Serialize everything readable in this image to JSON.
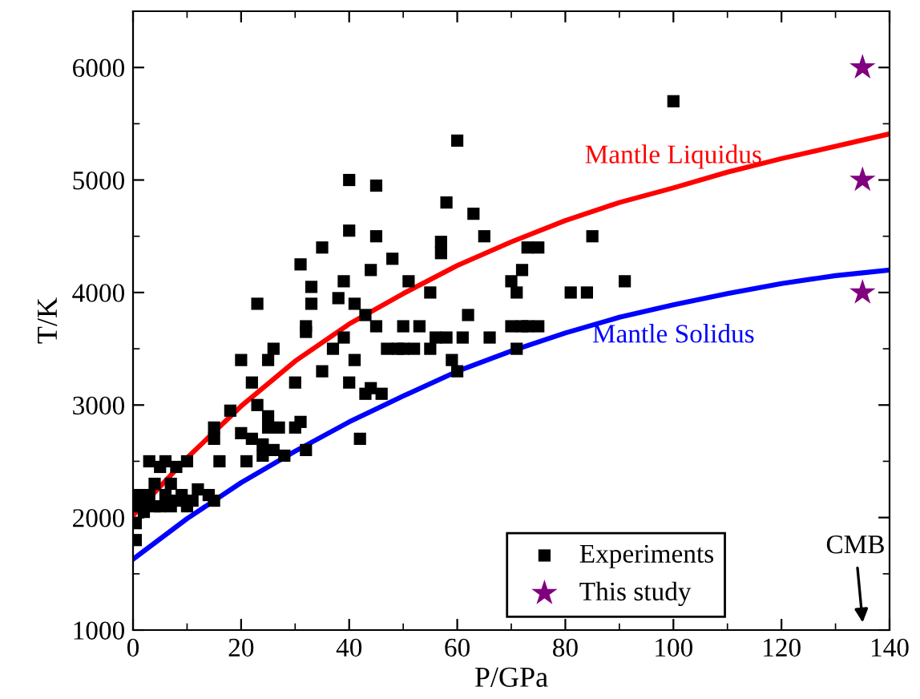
{
  "chart_data": {
    "type": "scatter",
    "xlabel": "P/GPa",
    "ylabel": "T/K",
    "xlim": [
      0,
      140
    ],
    "xticks": [
      0,
      20,
      40,
      60,
      80,
      100,
      120,
      140
    ],
    "ylim": [
      1000,
      6500
    ],
    "yticks": [
      1000,
      2000,
      3000,
      4000,
      5000,
      6000
    ],
    "legend": "bottom right",
    "grid": false,
    "annotations": [
      "CMB"
    ],
    "series": [
      {
        "name": "Mantle Liquidus",
        "type": "line",
        "color": "#ff0000",
        "x": [
          0,
          10,
          20,
          30,
          40,
          50,
          60,
          70,
          80,
          90,
          100,
          110,
          120,
          130,
          140
        ],
        "values": [
          2020,
          2530,
          2990,
          3390,
          3720,
          3990,
          4240,
          4450,
          4640,
          4800,
          4930,
          5070,
          5190,
          5300,
          5410
        ]
      },
      {
        "name": "Mantle Solidus",
        "type": "line",
        "color": "#0000ff",
        "x": [
          0,
          10,
          20,
          30,
          40,
          50,
          60,
          70,
          80,
          90,
          100,
          110,
          120,
          130,
          140
        ],
        "values": [
          1630,
          1990,
          2310,
          2590,
          2850,
          3080,
          3300,
          3480,
          3640,
          3780,
          3890,
          3990,
          4080,
          4150,
          4200
        ]
      },
      {
        "name": "Experiments",
        "marker": "square",
        "color": "#000000",
        "x": [
          0.5,
          0.5,
          1,
          1,
          2,
          2,
          3,
          3,
          4,
          4,
          5,
          5,
          6,
          6,
          7,
          7,
          8,
          8,
          9,
          10,
          10,
          11,
          12,
          14,
          15,
          15,
          15,
          16,
          18,
          20,
          20,
          21,
          22,
          23,
          22,
          23,
          24,
          24,
          25,
          25,
          25,
          26,
          26,
          27,
          28,
          30,
          30,
          31,
          31,
          32,
          32,
          32,
          33,
          33,
          35,
          35,
          37,
          38,
          39,
          39,
          40,
          40,
          40,
          41,
          41,
          42,
          43,
          43,
          44,
          44,
          45,
          45,
          45,
          46,
          47,
          48,
          49,
          50,
          50,
          51,
          52,
          53,
          55,
          55,
          56,
          57,
          57,
          58,
          58,
          59,
          60,
          60,
          61,
          62,
          63,
          65,
          66,
          70,
          71,
          71,
          72,
          73,
          73,
          75,
          75,
          81,
          84,
          85,
          91,
          100,
          70,
          72
        ],
        "values": [
          1800,
          1950,
          2100,
          2200,
          2050,
          2150,
          2500,
          2200,
          2100,
          2300,
          2450,
          2100,
          2200,
          2500,
          2100,
          2300,
          2450,
          2150,
          2200,
          2100,
          2500,
          2150,
          2250,
          2200,
          2150,
          2700,
          2800,
          2500,
          2950,
          2750,
          3400,
          2500,
          2700,
          3900,
          3200,
          3000,
          2550,
          2650,
          2800,
          2900,
          3400,
          2600,
          3500,
          2800,
          2550,
          2800,
          3200,
          2850,
          4250,
          3650,
          3700,
          2600,
          3900,
          4050,
          3300,
          4400,
          3500,
          3950,
          4100,
          3600,
          4550,
          5000,
          3200,
          3400,
          3900,
          2700,
          3100,
          3800,
          3150,
          4200,
          4950,
          4500,
          3700,
          3100,
          3500,
          4300,
          3500,
          3700,
          3500,
          4100,
          3500,
          3700,
          3500,
          4000,
          3600,
          4350,
          4450,
          3600,
          4800,
          3400,
          3300,
          5350,
          3600,
          3800,
          4700,
          4500,
          3600,
          3700,
          3500,
          4000,
          3700,
          4400,
          3700,
          4400,
          3700,
          4000,
          4000,
          4500,
          4100,
          5700,
          4100,
          4200
        ]
      },
      {
        "name": "This study",
        "marker": "star",
        "color": "#800080",
        "x": [
          135,
          135,
          135
        ],
        "values": [
          6000,
          5000,
          4000
        ]
      }
    ]
  }
}
